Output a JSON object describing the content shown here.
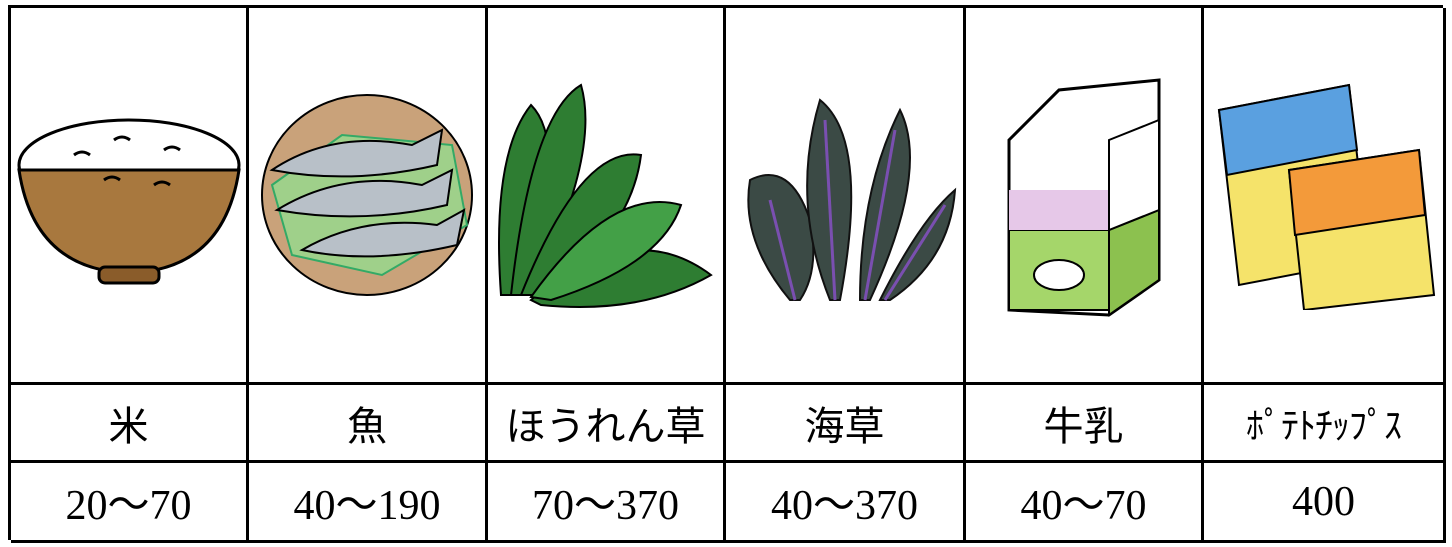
{
  "table": {
    "columns": [
      {
        "name": "米",
        "value": "20～70"
      },
      {
        "name": "魚",
        "value": "40～190"
      },
      {
        "name": "ほうれん草",
        "value": "70～370"
      },
      {
        "name": "海草",
        "value": "40～370"
      },
      {
        "name": "牛乳",
        "value": "40～70"
      },
      {
        "name": "ﾎﾟﾃﾄﾁｯﾌﾟｽ",
        "value": "400"
      }
    ]
  }
}
